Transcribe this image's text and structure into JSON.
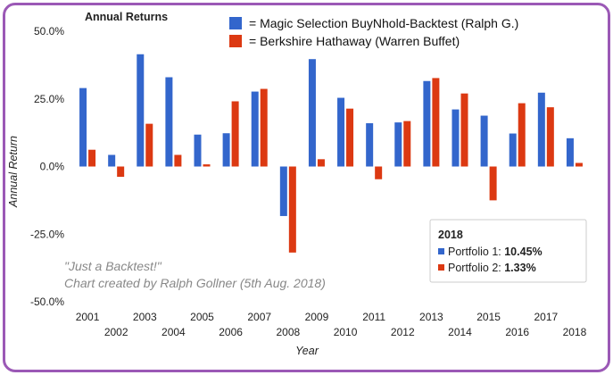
{
  "chart_data": {
    "type": "bar",
    "title": "Annual Returns",
    "xlabel": "Year",
    "ylabel": "Annual Return",
    "ylim": [
      -50,
      50
    ],
    "yticks": [
      "50.0%",
      "25.0%",
      "0.0%",
      "-25.0%",
      "-50.0%"
    ],
    "ytick_values": [
      50,
      25,
      0,
      -25,
      -50
    ],
    "categories": [
      "2001",
      "2002",
      "2003",
      "2004",
      "2005",
      "2006",
      "2007",
      "2008",
      "2009",
      "2010",
      "2011",
      "2012",
      "2013",
      "2014",
      "2015",
      "2016",
      "2017",
      "2018"
    ],
    "series": [
      {
        "name": "= Magic Selection BuyNhold-Backtest (Ralph G.)",
        "color": "#3366cc",
        "values": [
          29.0,
          4.3,
          41.5,
          33.0,
          11.8,
          12.3,
          27.7,
          -18.3,
          39.7,
          25.4,
          16.0,
          16.3,
          31.6,
          21.1,
          18.8,
          12.2,
          27.3,
          10.45
        ]
      },
      {
        "name": "= Berkshire Hathaway (Warren Buffet)",
        "color": "#dc3912",
        "values": [
          6.2,
          -3.8,
          15.8,
          4.3,
          0.8,
          24.1,
          28.7,
          -31.8,
          2.7,
          21.4,
          -4.7,
          16.8,
          32.7,
          27.0,
          -12.5,
          23.4,
          21.9,
          1.33
        ]
      }
    ],
    "tooltip": {
      "title": "2018",
      "lines": [
        {
          "label": "Portfolio 1: ",
          "value": "10.45%"
        },
        {
          "label": "Portfolio 2: ",
          "value": "1.33%"
        }
      ]
    },
    "annotation": {
      "line1": "\"Just a Backtest!\"",
      "line2": "Chart created by Ralph Gollner (5th Aug. 2018)"
    },
    "legend_position": "top-right",
    "grid": false
  }
}
